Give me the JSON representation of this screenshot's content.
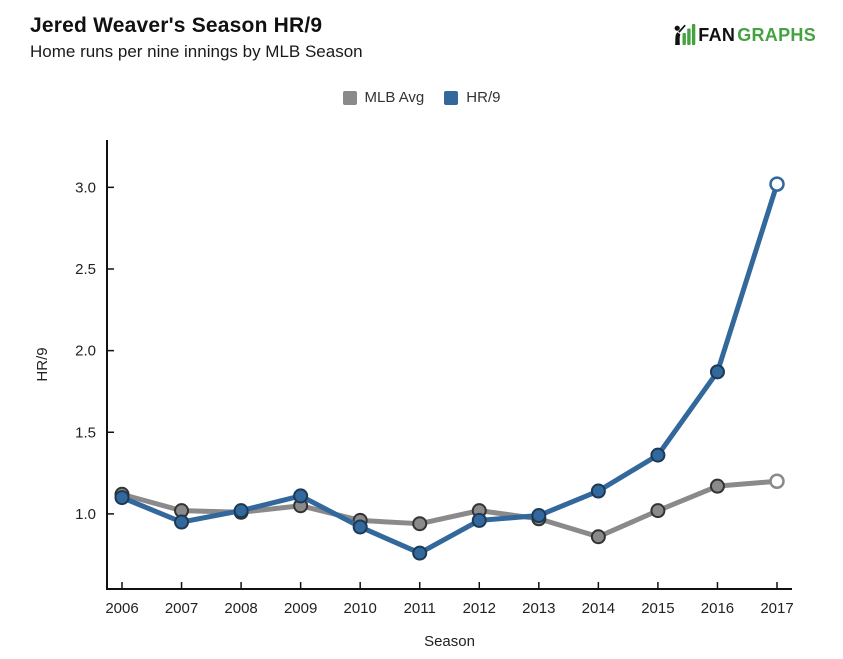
{
  "header": {
    "title": "Jered Weaver's Season HR/9",
    "subtitle": "Home runs per nine innings by MLB Season"
  },
  "logo": {
    "text_fan": "FAN",
    "text_graphs": "GRAPHS",
    "green": "#44a340",
    "dark": "#111111"
  },
  "legend": {
    "items": [
      {
        "label": "MLB Avg",
        "color": "#8a8a8a"
      },
      {
        "label": "HR/9",
        "color": "#33689c"
      }
    ]
  },
  "chart_data": {
    "type": "line",
    "title": "Jered Weaver's Season HR/9",
    "subtitle": "Home runs per nine innings by MLB Season",
    "x": [
      "2006",
      "2007",
      "2008",
      "2009",
      "2010",
      "2011",
      "2012",
      "2013",
      "2014",
      "2015",
      "2016",
      "2017"
    ],
    "xlabel": "Season",
    "ylabel": "HR/9",
    "yticks": [
      1.0,
      1.5,
      2.0,
      2.5,
      3.0
    ],
    "ylim": [
      0.54,
      3.29
    ],
    "grid": false,
    "legend_position": "top-center",
    "axis_color": "#111111",
    "series": [
      {
        "name": "MLB Avg",
        "color": "#8a8a8a",
        "marker_border": "#333333",
        "open_last_marker": true,
        "values": [
          1.12,
          1.02,
          1.01,
          1.05,
          0.96,
          0.94,
          1.02,
          0.97,
          0.86,
          1.02,
          1.17,
          1.2
        ]
      },
      {
        "name": "HR/9",
        "color": "#33689c",
        "marker_border": "#1d3a55",
        "open_last_marker": true,
        "values": [
          1.1,
          0.95,
          1.02,
          1.11,
          0.92,
          0.76,
          0.96,
          0.99,
          1.14,
          1.36,
          1.87,
          3.02
        ]
      }
    ]
  }
}
